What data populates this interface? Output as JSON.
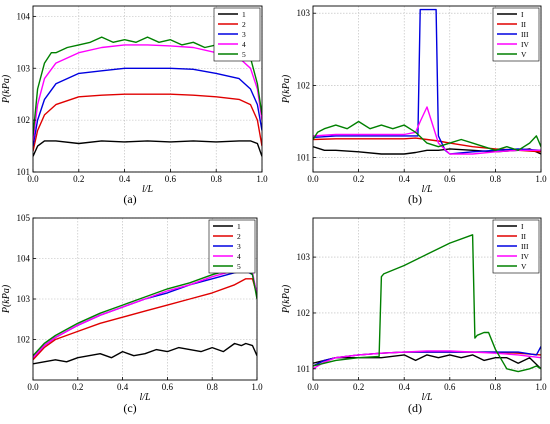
{
  "chart_data": [
    {
      "id": "a",
      "panel_label": "(a)",
      "type": "line",
      "xlabel": "l/L",
      "ylabel": "P(kPa)",
      "xlim": [
        0,
        1
      ],
      "ylim": [
        101,
        104.2
      ],
      "x_ticks": [
        "0.0",
        "0.2",
        "0.4",
        "0.6",
        "0.8",
        "1.0"
      ],
      "y_ticks": [
        "101",
        "102",
        "103",
        "104"
      ],
      "grid": true,
      "legend_position": "top-right",
      "series": [
        {
          "name": "1",
          "color": "#000000",
          "x": [
            0,
            0.02,
            0.05,
            0.1,
            0.2,
            0.3,
            0.4,
            0.5,
            0.6,
            0.7,
            0.8,
            0.9,
            0.95,
            0.98,
            1.0
          ],
          "y": [
            101.3,
            101.5,
            101.6,
            101.6,
            101.55,
            101.6,
            101.58,
            101.6,
            101.58,
            101.6,
            101.58,
            101.6,
            101.6,
            101.55,
            101.3
          ]
        },
        {
          "name": "2",
          "color": "#e00000",
          "x": [
            0,
            0.02,
            0.05,
            0.1,
            0.2,
            0.3,
            0.4,
            0.5,
            0.6,
            0.7,
            0.8,
            0.9,
            0.95,
            0.98,
            1.0
          ],
          "y": [
            101.4,
            101.8,
            102.1,
            102.3,
            102.45,
            102.48,
            102.5,
            102.5,
            102.5,
            102.48,
            102.45,
            102.4,
            102.3,
            102.0,
            101.5
          ]
        },
        {
          "name": "3",
          "color": "#0000e0",
          "x": [
            0,
            0.02,
            0.05,
            0.1,
            0.2,
            0.3,
            0.4,
            0.5,
            0.6,
            0.7,
            0.8,
            0.9,
            0.95,
            0.98,
            1.0
          ],
          "y": [
            101.5,
            102.0,
            102.4,
            102.7,
            102.9,
            102.95,
            103.0,
            103.0,
            103.0,
            102.98,
            102.9,
            102.8,
            102.6,
            102.3,
            101.8
          ]
        },
        {
          "name": "4",
          "color": "#ff00ff",
          "x": [
            0,
            0.02,
            0.05,
            0.1,
            0.2,
            0.3,
            0.4,
            0.5,
            0.6,
            0.7,
            0.8,
            0.9,
            0.95,
            0.98,
            1.0
          ],
          "y": [
            101.6,
            102.3,
            102.8,
            103.1,
            103.3,
            103.4,
            103.45,
            103.45,
            103.43,
            103.4,
            103.3,
            103.2,
            103.0,
            102.6,
            102.0
          ]
        },
        {
          "name": "5",
          "color": "#008000",
          "x": [
            0,
            0.02,
            0.05,
            0.08,
            0.1,
            0.15,
            0.2,
            0.25,
            0.3,
            0.35,
            0.4,
            0.45,
            0.5,
            0.55,
            0.6,
            0.65,
            0.7,
            0.75,
            0.8,
            0.85,
            0.9,
            0.95,
            0.98,
            1.0
          ],
          "y": [
            101.7,
            102.6,
            103.1,
            103.3,
            103.3,
            103.4,
            103.45,
            103.5,
            103.6,
            103.5,
            103.55,
            103.5,
            103.6,
            103.5,
            103.55,
            103.45,
            103.5,
            103.4,
            103.45,
            103.35,
            103.3,
            103.2,
            102.7,
            102.1
          ]
        }
      ]
    },
    {
      "id": "b",
      "panel_label": "(b)",
      "type": "line",
      "xlabel": "l/L",
      "ylabel": "P(kPa)",
      "xlim": [
        0,
        1
      ],
      "ylim": [
        100.8,
        103.1
      ],
      "x_ticks": [
        "0.0",
        "0.2",
        "0.4",
        "0.6",
        "0.8",
        "1.0"
      ],
      "y_ticks": [
        "101",
        "102",
        "103"
      ],
      "grid": true,
      "legend_position": "top-right",
      "series": [
        {
          "name": "I",
          "color": "#000000",
          "x": [
            0,
            0.05,
            0.1,
            0.2,
            0.3,
            0.4,
            0.45,
            0.5,
            0.55,
            0.6,
            0.7,
            0.8,
            0.9,
            0.95,
            1.0
          ],
          "y": [
            101.15,
            101.1,
            101.1,
            101.08,
            101.05,
            101.05,
            101.07,
            101.1,
            101.1,
            101.12,
            101.1,
            101.08,
            101.1,
            101.12,
            101.05
          ]
        },
        {
          "name": "II",
          "color": "#e00000",
          "x": [
            0,
            0.1,
            0.2,
            0.3,
            0.4,
            0.45,
            0.5,
            0.55,
            0.6,
            0.7,
            0.8,
            0.9,
            1.0
          ],
          "y": [
            101.25,
            101.26,
            101.26,
            101.26,
            101.26,
            101.27,
            101.25,
            101.23,
            101.2,
            101.15,
            101.12,
            101.1,
            101.08
          ]
        },
        {
          "name": "III",
          "color": "#0000e0",
          "x": [
            0,
            0.1,
            0.2,
            0.3,
            0.4,
            0.44,
            0.46,
            0.47,
            0.5,
            0.54,
            0.55,
            0.58,
            0.6,
            0.7,
            0.8,
            0.9,
            1.0
          ],
          "y": [
            101.28,
            101.3,
            101.3,
            101.3,
            101.3,
            101.3,
            101.3,
            103.05,
            103.05,
            103.05,
            101.3,
            101.1,
            101.05,
            101.08,
            101.1,
            101.12,
            101.1
          ]
        },
        {
          "name": "IV",
          "color": "#ff00ff",
          "x": [
            0,
            0.1,
            0.2,
            0.3,
            0.4,
            0.45,
            0.47,
            0.5,
            0.52,
            0.55,
            0.6,
            0.7,
            0.8,
            0.9,
            1.0
          ],
          "y": [
            101.3,
            101.32,
            101.32,
            101.32,
            101.32,
            101.35,
            101.5,
            101.7,
            101.5,
            101.2,
            101.05,
            101.05,
            101.08,
            101.1,
            101.1
          ]
        },
        {
          "name": "V",
          "color": "#008000",
          "x": [
            0,
            0.02,
            0.05,
            0.1,
            0.15,
            0.2,
            0.25,
            0.3,
            0.35,
            0.4,
            0.45,
            0.5,
            0.55,
            0.6,
            0.65,
            0.7,
            0.75,
            0.8,
            0.85,
            0.9,
            0.95,
            0.98,
            1.0
          ],
          "y": [
            101.25,
            101.35,
            101.4,
            101.45,
            101.4,
            101.5,
            101.4,
            101.45,
            101.4,
            101.45,
            101.35,
            101.2,
            101.15,
            101.2,
            101.25,
            101.2,
            101.15,
            101.1,
            101.15,
            101.1,
            101.2,
            101.3,
            101.15
          ]
        }
      ]
    },
    {
      "id": "c",
      "panel_label": "(c)",
      "type": "line",
      "xlabel": "l/L",
      "ylabel": "P(kPa)",
      "xlim": [
        0,
        1
      ],
      "ylim": [
        101,
        105
      ],
      "x_ticks": [
        "0.0",
        "0.2",
        "0.4",
        "0.6",
        "0.8",
        "1.0"
      ],
      "y_ticks": [
        "102",
        "103",
        "104",
        "105"
      ],
      "grid": true,
      "legend_position": "top-right",
      "series": [
        {
          "name": "1",
          "color": "#000000",
          "x": [
            0,
            0.05,
            0.1,
            0.15,
            0.2,
            0.25,
            0.3,
            0.35,
            0.4,
            0.45,
            0.5,
            0.55,
            0.6,
            0.65,
            0.7,
            0.75,
            0.8,
            0.85,
            0.9,
            0.93,
            0.95,
            0.98,
            1.0
          ],
          "y": [
            101.4,
            101.45,
            101.5,
            101.45,
            101.55,
            101.6,
            101.65,
            101.55,
            101.7,
            101.6,
            101.65,
            101.75,
            101.7,
            101.8,
            101.75,
            101.7,
            101.8,
            101.7,
            101.9,
            101.85,
            101.9,
            101.85,
            101.6
          ]
        },
        {
          "name": "2",
          "color": "#e00000",
          "x": [
            0,
            0.05,
            0.1,
            0.2,
            0.3,
            0.4,
            0.5,
            0.6,
            0.7,
            0.8,
            0.9,
            0.95,
            0.98,
            1.0
          ],
          "y": [
            101.5,
            101.8,
            102.0,
            102.2,
            102.4,
            102.55,
            102.7,
            102.85,
            103.0,
            103.15,
            103.35,
            103.5,
            103.5,
            103.1
          ]
        },
        {
          "name": "3",
          "color": "#0000e0",
          "x": [
            0,
            0.05,
            0.1,
            0.2,
            0.3,
            0.4,
            0.5,
            0.6,
            0.7,
            0.8,
            0.9,
            0.95,
            0.98,
            1.0
          ],
          "y": [
            101.55,
            101.85,
            102.05,
            102.35,
            102.6,
            102.8,
            103.0,
            103.15,
            103.35,
            103.5,
            103.65,
            103.7,
            103.6,
            103.1
          ]
        },
        {
          "name": "4",
          "color": "#ff00ff",
          "x": [
            0,
            0.05,
            0.1,
            0.2,
            0.3,
            0.4,
            0.5,
            0.6,
            0.7,
            0.8,
            0.9,
            0.95,
            0.98,
            1.0
          ],
          "y": [
            101.55,
            101.85,
            102.05,
            102.35,
            102.6,
            102.8,
            103.0,
            103.2,
            103.35,
            103.55,
            103.7,
            103.75,
            103.65,
            103.1
          ]
        },
        {
          "name": "5",
          "color": "#008000",
          "x": [
            0,
            0.05,
            0.1,
            0.2,
            0.3,
            0.4,
            0.5,
            0.6,
            0.7,
            0.8,
            0.9,
            0.95,
            0.98,
            1.0
          ],
          "y": [
            101.6,
            101.9,
            102.1,
            102.4,
            102.65,
            102.85,
            103.05,
            103.25,
            103.4,
            103.6,
            103.75,
            103.75,
            103.6,
            103.0
          ]
        }
      ]
    },
    {
      "id": "d",
      "panel_label": "(d)",
      "type": "line",
      "xlabel": "l/L",
      "ylabel": "P(kPa)",
      "xlim": [
        0,
        1
      ],
      "ylim": [
        100.8,
        103.7
      ],
      "x_ticks": [
        "0.0",
        "0.2",
        "0.4",
        "0.6",
        "0.8",
        "1.0"
      ],
      "y_ticks": [
        "101",
        "102",
        "103"
      ],
      "grid": true,
      "legend_position": "top-right",
      "series": [
        {
          "name": "I",
          "color": "#000000",
          "x": [
            0,
            0.05,
            0.1,
            0.2,
            0.3,
            0.4,
            0.45,
            0.5,
            0.55,
            0.6,
            0.65,
            0.7,
            0.75,
            0.8,
            0.85,
            0.9,
            0.95,
            1.0
          ],
          "y": [
            101.1,
            101.15,
            101.2,
            101.2,
            101.2,
            101.25,
            101.15,
            101.25,
            101.2,
            101.25,
            101.2,
            101.25,
            101.15,
            101.2,
            101.2,
            101.1,
            101.2,
            101.0
          ]
        },
        {
          "name": "II",
          "color": "#e00000",
          "x": [
            0,
            0.05,
            0.1,
            0.2,
            0.3,
            0.4,
            0.5,
            0.6,
            0.7,
            0.8,
            0.9,
            1.0
          ],
          "y": [
            101.05,
            101.15,
            101.2,
            101.25,
            101.28,
            101.3,
            101.3,
            101.3,
            101.3,
            101.3,
            101.28,
            101.25
          ]
        },
        {
          "name": "III",
          "color": "#0000e0",
          "x": [
            0,
            0.05,
            0.1,
            0.2,
            0.3,
            0.4,
            0.5,
            0.6,
            0.7,
            0.8,
            0.9,
            0.98,
            1.0
          ],
          "y": [
            101.05,
            101.15,
            101.2,
            101.25,
            101.28,
            101.3,
            101.3,
            101.3,
            101.3,
            101.3,
            101.3,
            101.25,
            101.4
          ]
        },
        {
          "name": "IV",
          "color": "#ff00ff",
          "x": [
            0,
            0.05,
            0.1,
            0.2,
            0.3,
            0.4,
            0.5,
            0.6,
            0.7,
            0.8,
            0.9,
            1.0
          ],
          "y": [
            101.0,
            101.12,
            101.2,
            101.25,
            101.28,
            101.3,
            101.32,
            101.32,
            101.3,
            101.28,
            101.25,
            101.2
          ]
        },
        {
          "name": "V",
          "color": "#008000",
          "x": [
            0,
            0.05,
            0.1,
            0.2,
            0.29,
            0.3,
            0.31,
            0.4,
            0.5,
            0.6,
            0.7,
            0.71,
            0.72,
            0.75,
            0.77,
            0.8,
            0.85,
            0.9,
            0.95,
            0.98,
            1.0
          ],
          "y": [
            101.05,
            101.1,
            101.15,
            101.2,
            101.22,
            102.65,
            102.7,
            102.85,
            103.05,
            103.25,
            103.4,
            101.55,
            101.6,
            101.65,
            101.65,
            101.35,
            101.0,
            100.95,
            101.0,
            101.05,
            101.0
          ]
        }
      ]
    }
  ]
}
